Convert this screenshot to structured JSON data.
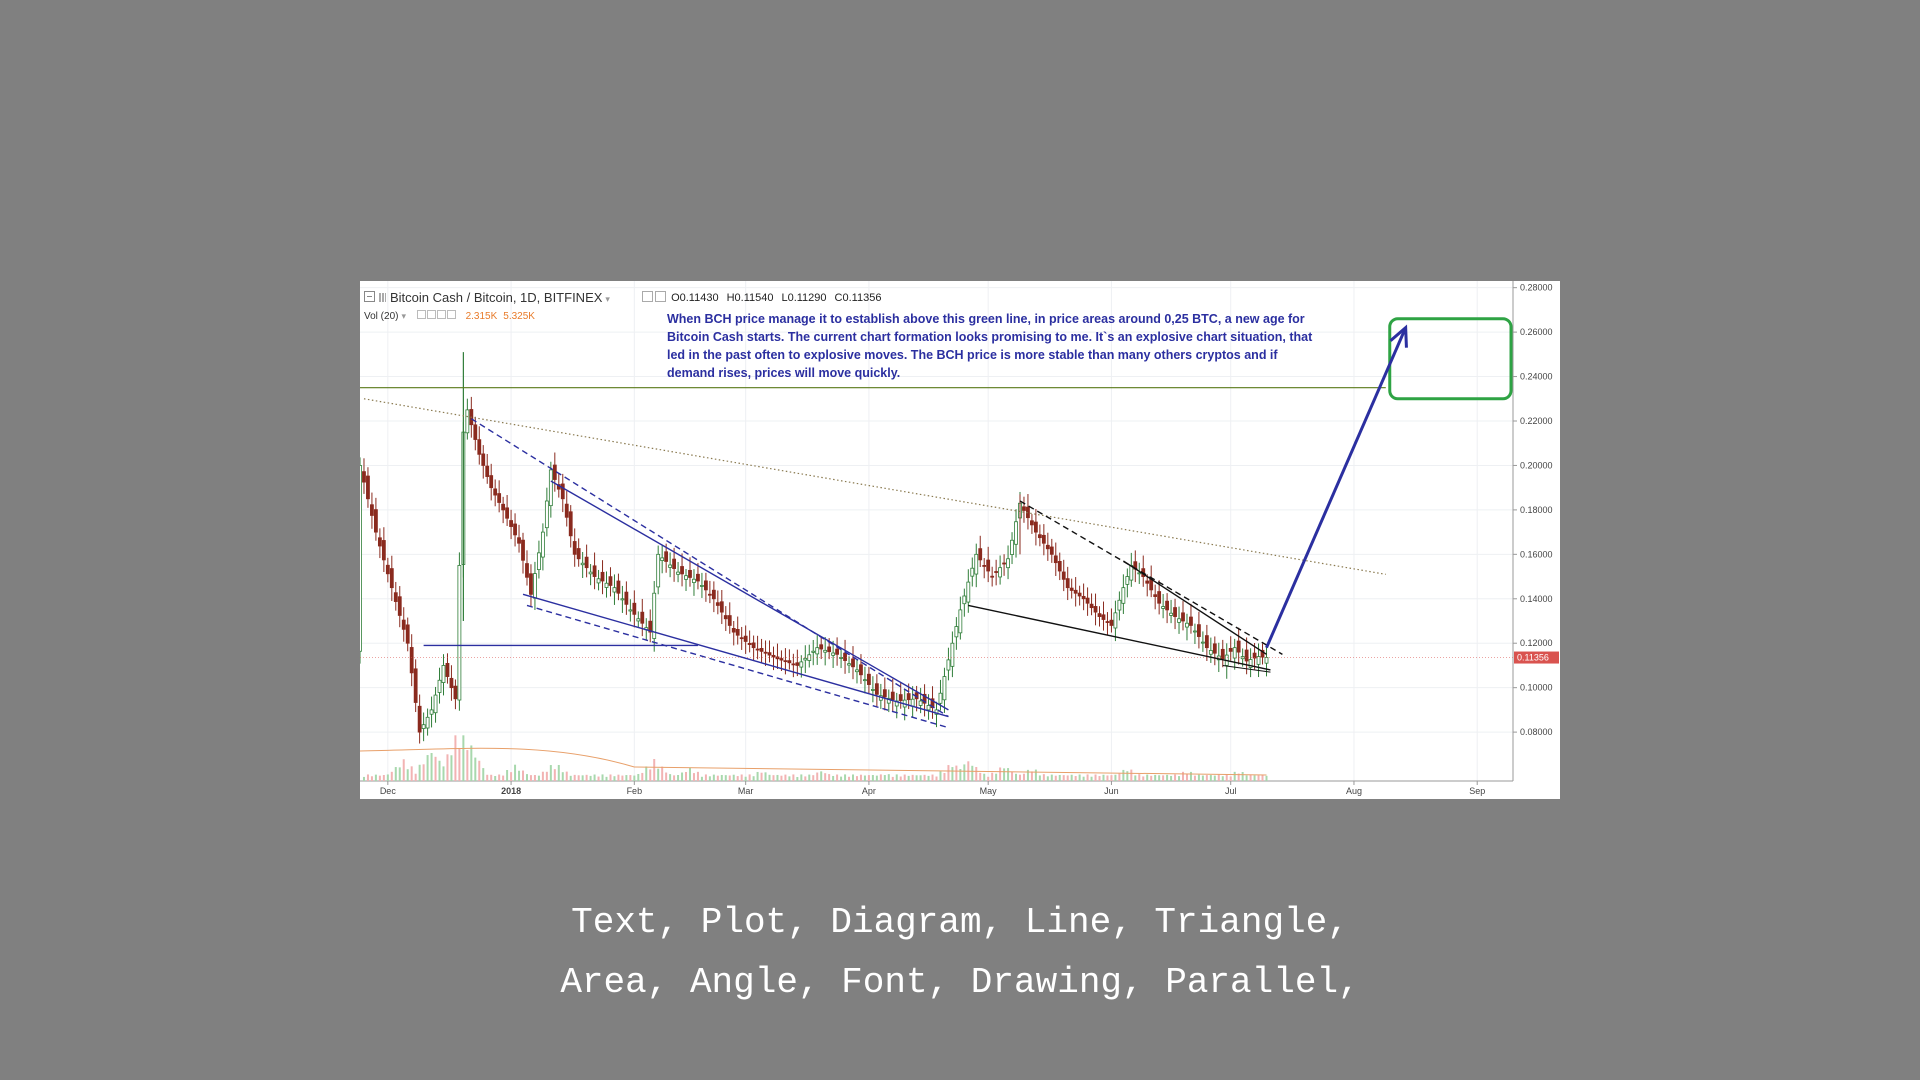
{
  "header": {
    "symbol": "Bitcoin Cash / Bitcoin, 1D, BITFINEX",
    "ohlc": [
      "O0.11430",
      "H0.11540",
      "L0.11290",
      "C0.11356"
    ],
    "vol_label": "Vol (20)",
    "vol_values": [
      "2.315K",
      "5.325K"
    ]
  },
  "annotation": {
    "lines": [
      "When BCH price manage it to establish above this green line, in price areas around 0,25 BTC, a new age for",
      "Bitcoin Cash starts. The current chart formation looks promising to me. It`s an explosive chart situation, that",
      "led in the past often to explosive moves. The BCH price is more stable than many others cryptos and if",
      "demand rises, prices will move quickly."
    ]
  },
  "caption": {
    "line1": "Text, Plot, Diagram, Line, Triangle,",
    "line2": "Area, Angle, Font, Drawing, Parallel,"
  },
  "chart_data": {
    "type": "line",
    "title": "Bitcoin Cash / Bitcoin, 1D, BITFINEX",
    "y_tick_labels": [
      "0.28000",
      "0.26000",
      "0.24000",
      "0.22000",
      "0.20000",
      "0.18000",
      "0.16000",
      "0.14000",
      "0.12000",
      "0.10000",
      "0.08000"
    ],
    "y_ticks": [
      0.28,
      0.26,
      0.24,
      0.22,
      0.2,
      0.18,
      0.16,
      0.14,
      0.12,
      0.1,
      0.08
    ],
    "ylim": [
      0.058,
      0.283
    ],
    "x_tick_labels": [
      "Dec",
      "2018",
      "Feb",
      "Mar",
      "Apr",
      "May",
      "Jun",
      "Jul",
      "Aug",
      "Sep"
    ],
    "x_ticks": [
      "2017-12-01",
      "2018-01-01",
      "2018-02-01",
      "2018-03-01",
      "2018-04-01",
      "2018-05-01",
      "2018-06-01",
      "2018-07-01",
      "2018-08-01",
      "2018-09-01"
    ],
    "xlim": [
      "2017-11-24",
      "2018-09-10"
    ],
    "last_price_label": "0.11356",
    "last_price": 0.11356,
    "grid": true,
    "colors": {
      "up": "#2f7d38",
      "down": "#8a2a1e",
      "blue_lines": "#2b2fa0",
      "green_line": "#5a7a1a",
      "green_box": "#2ea344",
      "price_line": "#d9534f",
      "vol_up": "#a8d8ad",
      "vol_down": "#f2b3b3"
    },
    "price_path": [
      [
        "2017-11-24",
        0.2
      ],
      [
        "2017-11-28",
        0.17
      ],
      [
        "2017-12-02",
        0.145
      ],
      [
        "2017-12-06",
        0.12
      ],
      [
        "2017-12-09",
        0.08
      ],
      [
        "2017-12-12",
        0.09
      ],
      [
        "2017-12-15",
        0.11
      ],
      [
        "2017-12-18",
        0.095
      ],
      [
        "2017-12-20",
        0.215
      ],
      [
        "2017-12-21",
        0.225
      ],
      [
        "2017-12-24",
        0.205
      ],
      [
        "2017-12-27",
        0.19
      ],
      [
        "2017-12-30",
        0.18
      ],
      [
        "2018-01-03",
        0.165
      ],
      [
        "2018-01-06",
        0.142
      ],
      [
        "2018-01-09",
        0.17
      ],
      [
        "2018-01-11",
        0.198
      ],
      [
        "2018-01-14",
        0.185
      ],
      [
        "2018-01-17",
        0.16
      ],
      [
        "2018-01-22",
        0.15
      ],
      [
        "2018-01-27",
        0.145
      ],
      [
        "2018-01-31",
        0.135
      ],
      [
        "2018-02-05",
        0.125
      ],
      [
        "2018-02-07",
        0.16
      ],
      [
        "2018-02-12",
        0.152
      ],
      [
        "2018-02-17",
        0.148
      ],
      [
        "2018-02-21",
        0.14
      ],
      [
        "2018-02-26",
        0.125
      ],
      [
        "2018-03-03",
        0.118
      ],
      [
        "2018-03-09",
        0.113
      ],
      [
        "2018-03-14",
        0.11
      ],
      [
        "2018-03-19",
        0.118
      ],
      [
        "2018-03-24",
        0.115
      ],
      [
        "2018-03-29",
        0.108
      ],
      [
        "2018-04-03",
        0.097
      ],
      [
        "2018-04-08",
        0.094
      ],
      [
        "2018-04-13",
        0.095
      ],
      [
        "2018-04-18",
        0.09
      ],
      [
        "2018-04-20",
        0.105
      ],
      [
        "2018-04-24",
        0.135
      ],
      [
        "2018-04-28",
        0.16
      ],
      [
        "2018-05-02",
        0.15
      ],
      [
        "2018-05-06",
        0.158
      ],
      [
        "2018-05-09",
        0.183
      ],
      [
        "2018-05-13",
        0.17
      ],
      [
        "2018-05-17",
        0.16
      ],
      [
        "2018-05-21",
        0.145
      ],
      [
        "2018-05-25",
        0.14
      ],
      [
        "2018-05-29",
        0.132
      ],
      [
        "2018-06-01",
        0.128
      ],
      [
        "2018-06-04",
        0.145
      ],
      [
        "2018-06-06",
        0.155
      ],
      [
        "2018-06-09",
        0.15
      ],
      [
        "2018-06-13",
        0.138
      ],
      [
        "2018-06-17",
        0.132
      ],
      [
        "2018-06-21",
        0.128
      ],
      [
        "2018-06-25",
        0.118
      ],
      [
        "2018-06-29",
        0.113
      ],
      [
        "2018-07-02",
        0.118
      ],
      [
        "2018-07-05",
        0.112
      ],
      [
        "2018-07-08",
        0.114
      ],
      [
        "2018-07-10",
        0.11356
      ]
    ],
    "volumes": [
      [
        "2017-12-05",
        0.4
      ],
      [
        "2017-12-12",
        0.6
      ],
      [
        "2017-12-19",
        1.0
      ],
      [
        "2017-12-21",
        0.8
      ],
      [
        "2018-01-02",
        0.3
      ],
      [
        "2018-01-12",
        0.35
      ],
      [
        "2018-02-06",
        0.4
      ],
      [
        "2018-02-15",
        0.25
      ],
      [
        "2018-03-05",
        0.2
      ],
      [
        "2018-03-20",
        0.2
      ],
      [
        "2018-04-05",
        0.15
      ],
      [
        "2018-04-22",
        0.35
      ],
      [
        "2018-04-26",
        0.4
      ],
      [
        "2018-05-05",
        0.3
      ],
      [
        "2018-05-12",
        0.25
      ],
      [
        "2018-06-05",
        0.25
      ],
      [
        "2018-06-20",
        0.2
      ],
      [
        "2018-07-03",
        0.2
      ]
    ],
    "drawings": {
      "green_horizontal": 0.235,
      "blue_horizontal": {
        "from": "2017-12-10",
        "to": "2018-02-17",
        "y": 0.119
      },
      "dotted_resistance": {
        "from": [
          "2017-11-25",
          0.23
        ],
        "to": [
          "2018-08-09",
          0.151
        ]
      },
      "target_box": {
        "from": [
          "2018-08-10",
          0.266
        ],
        "to": [
          "2018-09-10",
          0.23
        ]
      },
      "blue_arrow": {
        "from": [
          "2018-07-10",
          0.118
        ],
        "to": [
          "2018-08-14",
          0.262
        ]
      }
    }
  }
}
